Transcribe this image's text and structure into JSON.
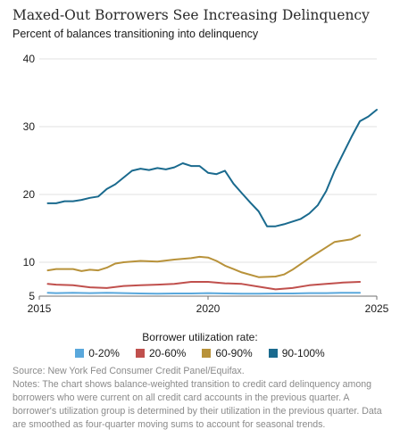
{
  "chart_data": {
    "type": "line",
    "title": "Maxed-Out Borrowers See Increasing Delinquency",
    "subtitle": "Percent of balances transitioning into delinquency",
    "xlim": [
      2015,
      2025
    ],
    "ylim": [
      5,
      40
    ],
    "x_ticks": [
      2015,
      2020,
      2025
    ],
    "y_ticks": [
      5,
      10,
      20,
      30,
      40
    ],
    "grid": "horizontal",
    "legend_title": "Borrower utilization rate:",
    "legend_placement": "bottom",
    "series": [
      {
        "name": "0-20%",
        "color": "#5aa8dc",
        "points": [
          [
            2015.25,
            5.5
          ],
          [
            2015.5,
            5.45
          ],
          [
            2016.0,
            5.5
          ],
          [
            2016.5,
            5.45
          ],
          [
            2017.0,
            5.5
          ],
          [
            2017.5,
            5.45
          ],
          [
            2018.0,
            5.4
          ],
          [
            2018.5,
            5.35
          ],
          [
            2019.0,
            5.4
          ],
          [
            2019.5,
            5.4
          ],
          [
            2020.0,
            5.45
          ],
          [
            2020.5,
            5.4
          ],
          [
            2021.0,
            5.35
          ],
          [
            2021.5,
            5.35
          ],
          [
            2022.0,
            5.4
          ],
          [
            2022.5,
            5.4
          ],
          [
            2023.0,
            5.45
          ],
          [
            2023.5,
            5.45
          ],
          [
            2024.0,
            5.5
          ],
          [
            2024.5,
            5.5
          ]
        ]
      },
      {
        "name": "20-60%",
        "color": "#c0504d",
        "points": [
          [
            2015.25,
            6.8
          ],
          [
            2015.5,
            6.7
          ],
          [
            2016.0,
            6.6
          ],
          [
            2016.5,
            6.3
          ],
          [
            2017.0,
            6.2
          ],
          [
            2017.5,
            6.5
          ],
          [
            2018.0,
            6.6
          ],
          [
            2018.5,
            6.7
          ],
          [
            2019.0,
            6.8
          ],
          [
            2019.5,
            7.1
          ],
          [
            2020.0,
            7.1
          ],
          [
            2020.5,
            6.9
          ],
          [
            2021.0,
            6.8
          ],
          [
            2021.5,
            6.4
          ],
          [
            2022.0,
            6.0
          ],
          [
            2022.5,
            6.2
          ],
          [
            2023.0,
            6.6
          ],
          [
            2023.5,
            6.8
          ],
          [
            2024.0,
            7.0
          ],
          [
            2024.5,
            7.1
          ]
        ]
      },
      {
        "name": "60-90%",
        "color": "#b8923a",
        "points": [
          [
            2015.25,
            8.8
          ],
          [
            2015.5,
            9.0
          ],
          [
            2016.0,
            9.0
          ],
          [
            2016.25,
            8.7
          ],
          [
            2016.5,
            8.9
          ],
          [
            2016.75,
            8.8
          ],
          [
            2017.0,
            9.2
          ],
          [
            2017.25,
            9.8
          ],
          [
            2017.5,
            10.0
          ],
          [
            2018.0,
            10.2
          ],
          [
            2018.5,
            10.1
          ],
          [
            2019.0,
            10.4
          ],
          [
            2019.5,
            10.6
          ],
          [
            2019.75,
            10.8
          ],
          [
            2020.0,
            10.7
          ],
          [
            2020.25,
            10.2
          ],
          [
            2020.5,
            9.5
          ],
          [
            2020.75,
            9.0
          ],
          [
            2021.0,
            8.5
          ],
          [
            2021.5,
            7.8
          ],
          [
            2022.0,
            7.9
          ],
          [
            2022.25,
            8.2
          ],
          [
            2022.5,
            8.9
          ],
          [
            2023.0,
            10.6
          ],
          [
            2023.5,
            12.2
          ],
          [
            2023.75,
            13.0
          ],
          [
            2024.25,
            13.4
          ],
          [
            2024.5,
            14.0
          ]
        ]
      },
      {
        "name": "90-100%",
        "color": "#1a6a8e",
        "points": [
          [
            2015.25,
            18.7
          ],
          [
            2015.5,
            18.7
          ],
          [
            2015.75,
            19.0
          ],
          [
            2016.0,
            19.0
          ],
          [
            2016.25,
            19.2
          ],
          [
            2016.5,
            19.5
          ],
          [
            2016.75,
            19.7
          ],
          [
            2017.0,
            20.8
          ],
          [
            2017.25,
            21.5
          ],
          [
            2017.5,
            22.5
          ],
          [
            2017.75,
            23.5
          ],
          [
            2018.0,
            23.8
          ],
          [
            2018.25,
            23.6
          ],
          [
            2018.5,
            23.9
          ],
          [
            2018.75,
            23.7
          ],
          [
            2019.0,
            24.0
          ],
          [
            2019.25,
            24.6
          ],
          [
            2019.5,
            24.2
          ],
          [
            2019.75,
            24.2
          ],
          [
            2020.0,
            23.2
          ],
          [
            2020.25,
            23.0
          ],
          [
            2020.5,
            23.5
          ],
          [
            2020.75,
            21.6
          ],
          [
            2021.0,
            20.2
          ],
          [
            2021.25,
            18.8
          ],
          [
            2021.5,
            17.5
          ],
          [
            2021.75,
            15.3
          ],
          [
            2022.0,
            15.3
          ],
          [
            2022.25,
            15.6
          ],
          [
            2022.5,
            16.0
          ],
          [
            2022.75,
            16.4
          ],
          [
            2023.0,
            17.2
          ],
          [
            2023.25,
            18.4
          ],
          [
            2023.5,
            20.5
          ],
          [
            2023.75,
            23.5
          ],
          [
            2024.0,
            26.0
          ],
          [
            2024.25,
            28.5
          ],
          [
            2024.5,
            30.8
          ],
          [
            2024.75,
            31.5
          ],
          [
            2025.0,
            32.5
          ]
        ]
      }
    ]
  },
  "notes": {
    "source": "Source: New York Fed Consumer Credit Panel/Equifax.",
    "text": "Notes: The chart shows balance-weighted transition to credit card delinquency among borrowers who were current on all credit card accounts in the previous quarter. A borrower's utilization group is determined by their utilization in the previous quarter. Data are smoothed as four-quarter moving sums to account for seasonal trends."
  }
}
